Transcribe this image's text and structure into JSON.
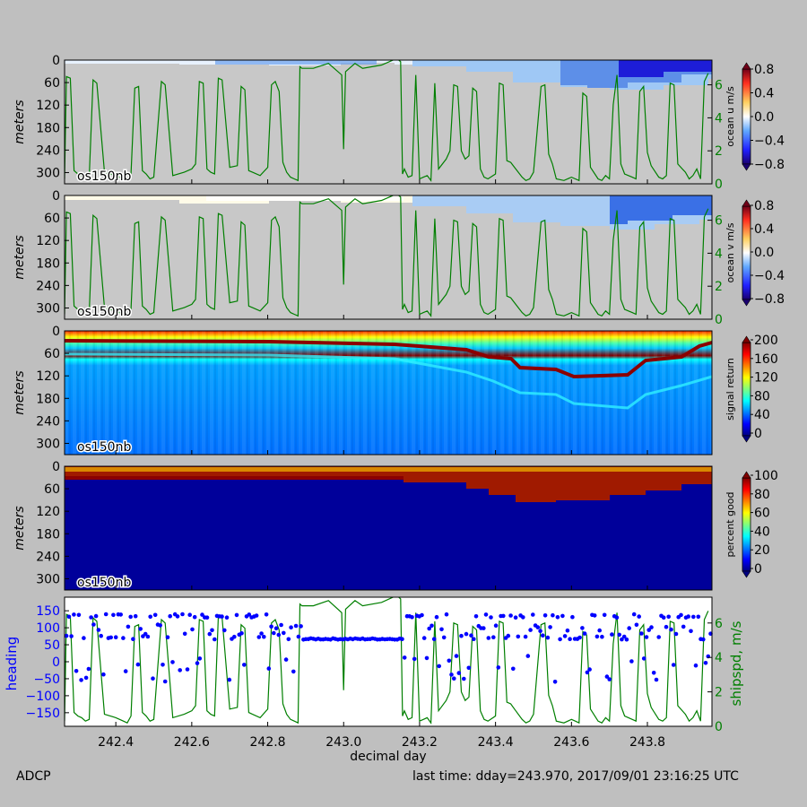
{
  "figure": {
    "footer_left": "ADCP",
    "footer_right": "last time: dday=243.970,  2017/09/01 23:16:25 UTC",
    "xlabel": "decimal day",
    "xticks": [
      "242.4",
      "242.6",
      "242.8",
      "243.0",
      "243.2",
      "243.4",
      "243.6",
      "243.8"
    ],
    "xrange": [
      242.265,
      243.97
    ]
  },
  "chart_data": [
    {
      "type": "heatmap",
      "panel": "ocean u",
      "ylabel": "meters",
      "yticks": [
        "0",
        "60",
        "120",
        "180",
        "240",
        "300"
      ],
      "ylim": [
        330,
        0
      ],
      "instrument_label": "os150nb",
      "colorbar_label": "ocean u m/s",
      "colorbar_ticks": [
        "0.8",
        "0.4",
        "0.0",
        "−0.4",
        "−0.8"
      ],
      "colorbar_range": [
        -0.8,
        0.8
      ],
      "right_axis_ticks": [
        "6",
        "4",
        "2",
        "0"
      ],
      "right_axis_range": [
        0,
        7.5
      ],
      "overlay": "ship speed (m/s)"
    },
    {
      "type": "heatmap",
      "panel": "ocean v",
      "ylabel": "meters",
      "yticks": [
        "0",
        "60",
        "120",
        "180",
        "240",
        "300"
      ],
      "ylim": [
        330,
        0
      ],
      "instrument_label": "os150nb",
      "colorbar_label": "ocean v m/s",
      "colorbar_ticks": [
        "0.8",
        "0.4",
        "0.0",
        "−0.4",
        "−0.8"
      ],
      "colorbar_range": [
        -0.8,
        0.8
      ],
      "right_axis_ticks": [
        "6",
        "4",
        "2",
        "0"
      ],
      "right_axis_range": [
        0,
        7.5
      ],
      "overlay": "ship speed (m/s)"
    },
    {
      "type": "heatmap",
      "panel": "signal return",
      "ylabel": "meters",
      "yticks": [
        "0",
        "60",
        "120",
        "180",
        "240",
        "300"
      ],
      "ylim": [
        330,
        0
      ],
      "instrument_label": "os150nb",
      "colorbar_label": "signal return",
      "colorbar_ticks": [
        "200",
        "160",
        "120",
        "80",
        "40",
        "0"
      ],
      "colorbar_range": [
        0,
        200
      ]
    },
    {
      "type": "heatmap",
      "panel": "percent good",
      "ylabel": "meters",
      "yticks": [
        "0",
        "60",
        "120",
        "180",
        "240",
        "300"
      ],
      "ylim": [
        330,
        0
      ],
      "instrument_label": "os150nb",
      "colorbar_label": "percent good",
      "colorbar_ticks": [
        "100",
        "80",
        "60",
        "40",
        "20",
        "0"
      ],
      "colorbar_range": [
        0,
        100
      ]
    },
    {
      "type": "scatter",
      "panel": "heading and ship speed",
      "ylabel": "heading",
      "yticks": [
        "150",
        "100",
        "50",
        "0",
        "−50",
        "−100",
        "−150"
      ],
      "ylim": [
        -190,
        190
      ],
      "right_ylabel": "shipspd, m/s",
      "right_axis_ticks": [
        "6",
        "4",
        "2",
        "0"
      ],
      "right_axis_range": [
        0,
        7.5
      ],
      "heading_color": "#0000ff",
      "speed_color": "#007f00",
      "speed_x": [
        242.265,
        242.27,
        242.28,
        242.29,
        242.3,
        242.31,
        242.32,
        242.33,
        242.34,
        242.35,
        242.37,
        242.4,
        242.42,
        242.43,
        242.44,
        242.45,
        242.46,
        242.47,
        242.48,
        242.49,
        242.5,
        242.52,
        242.53,
        242.55,
        242.58,
        242.6,
        242.61,
        242.62,
        242.63,
        242.64,
        242.65,
        242.66,
        242.67,
        242.68,
        242.7,
        242.72,
        242.73,
        242.74,
        242.75,
        242.76,
        242.78,
        242.8,
        242.81,
        242.82,
        242.83,
        242.84,
        242.85,
        242.86,
        242.87,
        242.88,
        242.885,
        242.89,
        242.92,
        242.96,
        242.995,
        243.0,
        243.005,
        243.03,
        243.05,
        243.1,
        243.14,
        243.15,
        243.155,
        243.16,
        243.17,
        243.18,
        243.19,
        243.2,
        243.21,
        243.22,
        243.23,
        243.24,
        243.25,
        243.27,
        243.28,
        243.29,
        243.3,
        243.31,
        243.32,
        243.33,
        243.34,
        243.35,
        243.36,
        243.37,
        243.38,
        243.4,
        243.41,
        243.42,
        243.43,
        243.44,
        243.45,
        243.47,
        243.48,
        243.49,
        243.5,
        243.52,
        243.53,
        243.54,
        243.55,
        243.56,
        243.58,
        243.6,
        243.61,
        243.62,
        243.63,
        243.64,
        243.65,
        243.67,
        243.68,
        243.69,
        243.7,
        243.71,
        243.72,
        243.73,
        243.74,
        243.76,
        243.77,
        243.78,
        243.79,
        243.8,
        243.81,
        243.83,
        243.84,
        243.85,
        243.86,
        243.87,
        243.88,
        243.9,
        243.91,
        243.92,
        243.93,
        243.94,
        243.95,
        243.96,
        243.97
      ],
      "speed_y": [
        0.3,
        6.5,
        6.4,
        0.8,
        0.6,
        0.5,
        0.3,
        0.4,
        6.3,
        6.1,
        0.7,
        0.5,
        0.3,
        0.2,
        0.6,
        5.8,
        5.9,
        0.8,
        0.6,
        0.3,
        0.4,
        6.2,
        6.0,
        0.5,
        0.7,
        0.9,
        1.2,
        6.2,
        6.1,
        0.9,
        0.7,
        0.6,
        6.4,
        6.3,
        1.0,
        1.1,
        5.9,
        5.7,
        0.8,
        0.7,
        0.5,
        1.0,
        6.0,
        6.2,
        5.6,
        1.3,
        0.7,
        0.4,
        0.3,
        0.2,
        7.1,
        7.0,
        7.0,
        7.3,
        6.6,
        2.1,
        6.8,
        7.3,
        7.0,
        7.2,
        7.6,
        7.4,
        0.6,
        0.9,
        0.4,
        0.5,
        6.6,
        0.3,
        0.4,
        0.5,
        0.2,
        6.1,
        0.9,
        1.5,
        2.0,
        6.0,
        5.9,
        2.0,
        1.5,
        1.7,
        5.8,
        5.6,
        0.9,
        0.4,
        0.3,
        0.6,
        6.1,
        6.0,
        1.4,
        1.3,
        1.0,
        0.4,
        0.2,
        0.3,
        0.7,
        5.9,
        6.0,
        1.8,
        1.2,
        0.3,
        0.2,
        0.4,
        0.3,
        0.2,
        5.5,
        5.3,
        1.0,
        0.3,
        0.2,
        0.5,
        0.3,
        4.8,
        6.6,
        1.2,
        0.6,
        0.4,
        0.3,
        5.6,
        5.9,
        1.9,
        1.1,
        0.4,
        0.3,
        0.5,
        6.1,
        6.0,
        1.2,
        0.7,
        0.3,
        0.5,
        0.9,
        0.3,
        6.2,
        6.7
      ]
    }
  ]
}
